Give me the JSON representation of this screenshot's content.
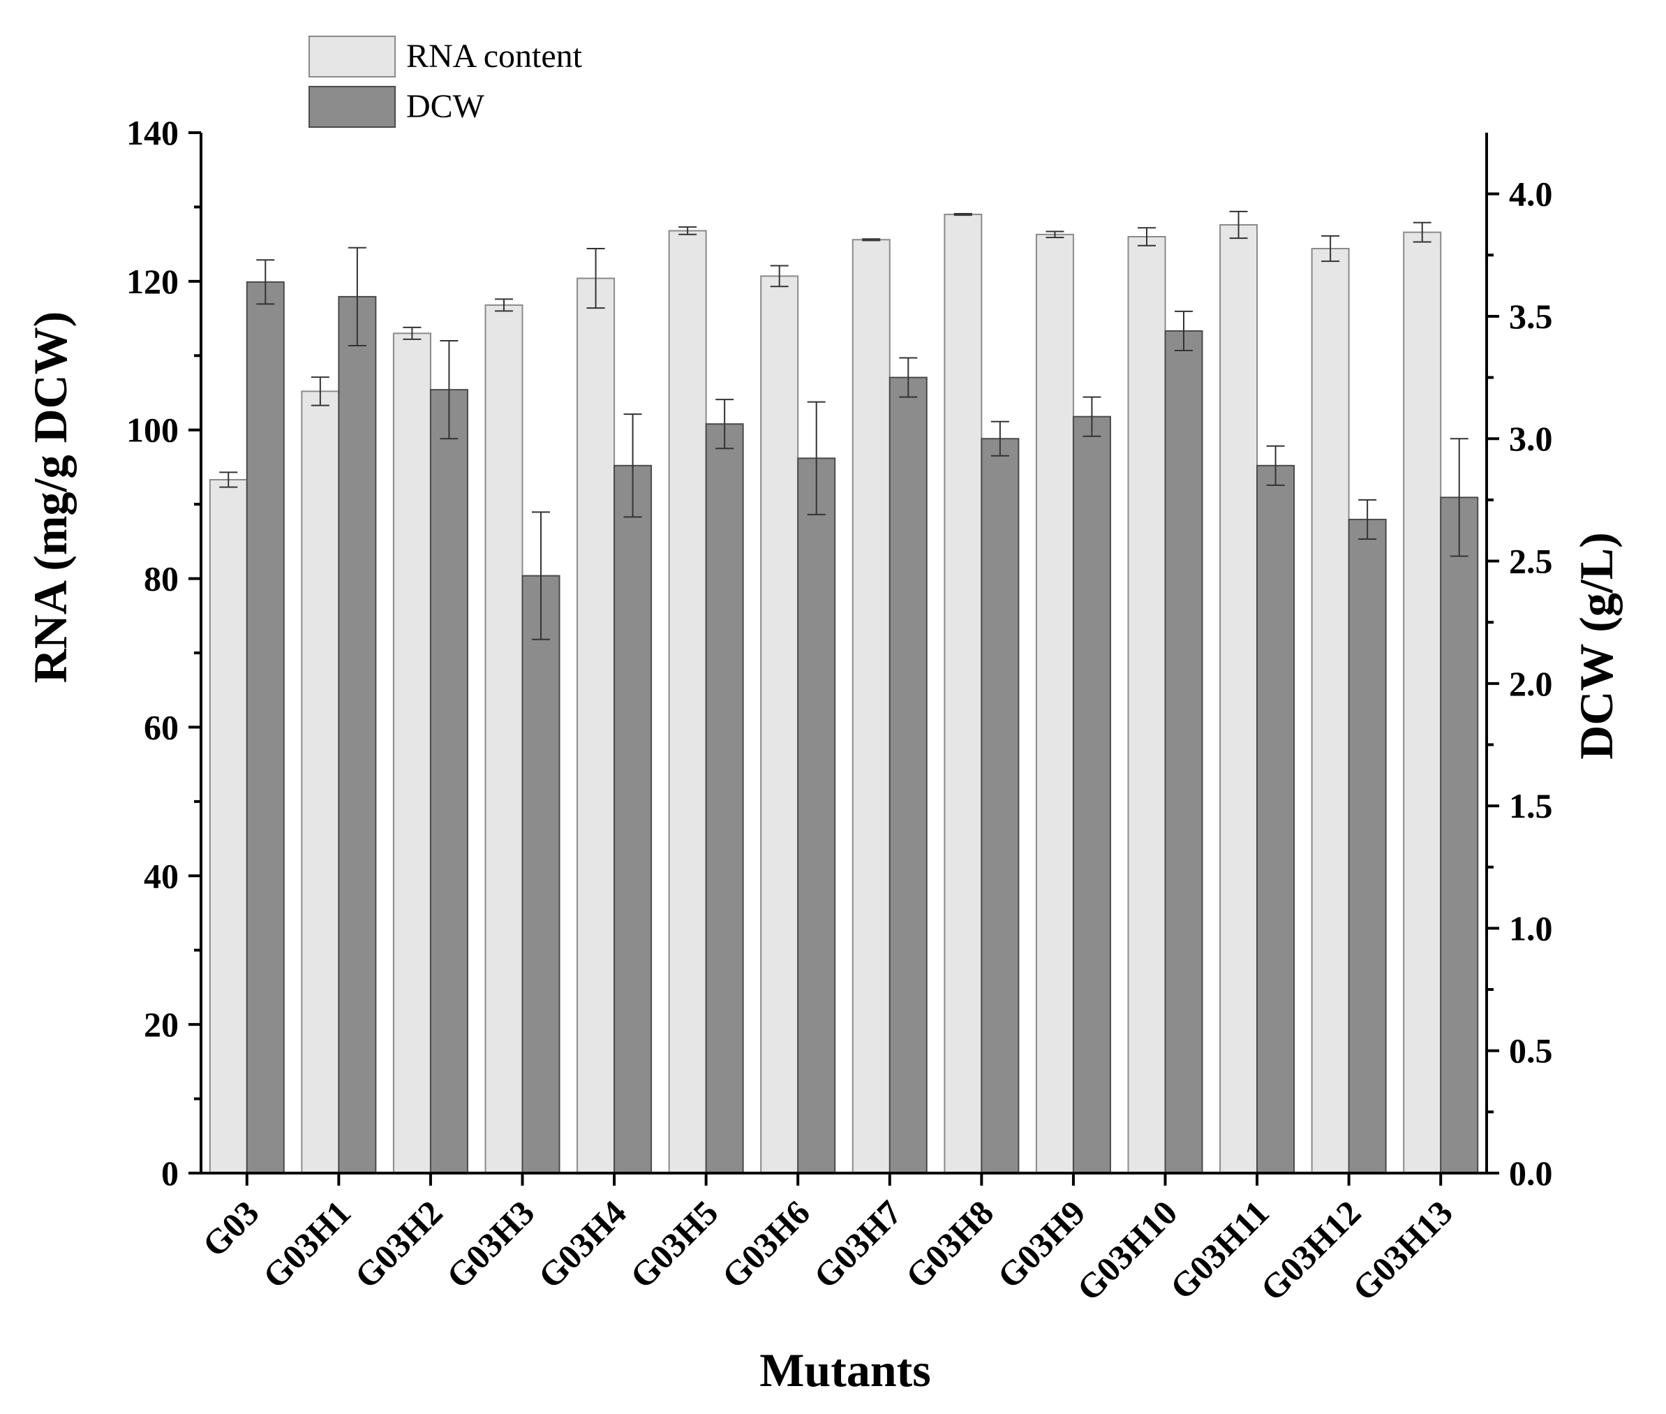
{
  "chart_data": {
    "type": "bar",
    "categories": [
      "G03",
      "G03H1",
      "G03H2",
      "G03H3",
      "G03H4",
      "G03H5",
      "G03H6",
      "G03H7",
      "G03H8",
      "G03H9",
      "G03H10",
      "G03H11",
      "G03H12",
      "G03H13"
    ],
    "series": [
      {
        "name": "RNA content",
        "axis": "left",
        "color": "#e6e6e6",
        "values": [
          93.3,
          105.2,
          113.0,
          116.8,
          120.4,
          126.8,
          120.7,
          125.6,
          129.0,
          126.3,
          126.0,
          127.6,
          124.4,
          126.6
        ],
        "errors": [
          1.0,
          1.9,
          0.8,
          0.8,
          4.0,
          0.5,
          1.4,
          0.1,
          0.1,
          0.4,
          1.2,
          1.8,
          1.7,
          1.3
        ]
      },
      {
        "name": "DCW",
        "axis": "right",
        "color": "#8c8c8c",
        "values": [
          3.64,
          3.58,
          3.2,
          2.44,
          2.89,
          3.06,
          2.92,
          3.25,
          3.0,
          3.09,
          3.44,
          2.89,
          2.67,
          2.76
        ],
        "errors": [
          0.09,
          0.2,
          0.2,
          0.26,
          0.21,
          0.1,
          0.23,
          0.08,
          0.07,
          0.08,
          0.08,
          0.08,
          0.08,
          0.24
        ]
      }
    ],
    "xlabel": "Mutants",
    "ylabel": "RNA (mg/g DCW)",
    "y2label": "DCW (g/L)",
    "ylim": [
      0,
      140
    ],
    "y2lim": [
      0,
      4.25
    ],
    "yticks": [
      "0",
      "20",
      "40",
      "60",
      "80",
      "100",
      "120",
      "140"
    ],
    "y2ticks": [
      "0.0",
      "0.5",
      "1.0",
      "1.5",
      "2.0",
      "2.5",
      "3.0",
      "3.5",
      "4.0"
    ],
    "legend_position": "top-left",
    "grid": false
  }
}
